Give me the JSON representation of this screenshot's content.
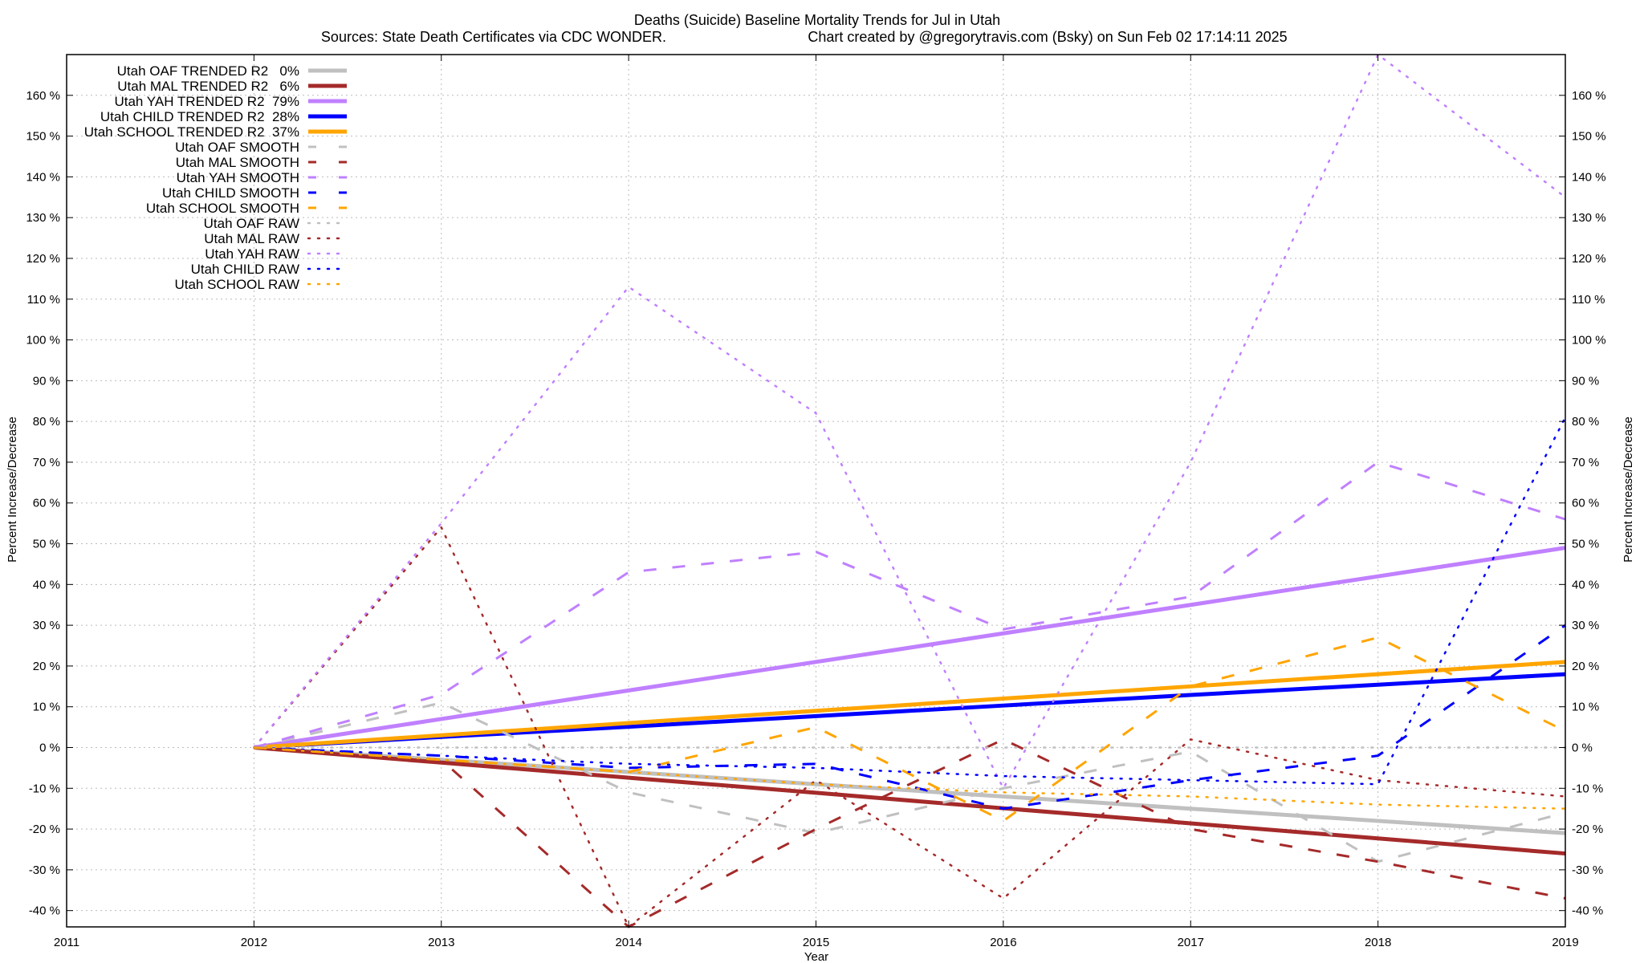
{
  "chart_data": {
    "type": "line",
    "title": "Deaths (Suicide)  Baseline Mortality Trends for Jul in Utah",
    "subtitle_left": "Sources: State Death Certificates via CDC WONDER.",
    "subtitle_right": "Chart created by @gregorytravis.com (Bsky) on Sun Feb 02 17:14:11 2025",
    "xlabel": "Year",
    "ylabel": "Percent Increase/Decrease",
    "y2label": "Percent Increase/Decrease",
    "xlim": [
      2011,
      2019
    ],
    "ylim": [
      -44,
      170
    ],
    "x_ticks": [
      "2011",
      "2012",
      "2013",
      "2014",
      "2015",
      "2016",
      "2017",
      "2018",
      "2019"
    ],
    "y_ticks": [
      -40,
      -30,
      -20,
      -10,
      0,
      10,
      20,
      30,
      40,
      50,
      60,
      70,
      80,
      90,
      100,
      110,
      120,
      130,
      140,
      150,
      160
    ],
    "y_tick_suffix": " %",
    "grid": true,
    "legend_position": "top-left",
    "x": [
      2012,
      2013,
      2014,
      2015,
      2016,
      2017,
      2018,
      2019
    ],
    "series": [
      {
        "name": "Utah OAF TRENDED R2   0%",
        "color": "#c0c0c0",
        "style": "solid",
        "values": [
          0,
          -3,
          -6,
          -9,
          -12,
          -15,
          -18,
          -21
        ]
      },
      {
        "name": "Utah MAL TRENDED R2   6%",
        "color": "#a52a2a",
        "style": "solid",
        "values": [
          0,
          -3.7,
          -7.4,
          -11.1,
          -14.9,
          -18.6,
          -22.3,
          -26
        ]
      },
      {
        "name": "Utah YAH TRENDED R2  79%",
        "color": "#c080ff",
        "style": "solid",
        "values": [
          0,
          7,
          14,
          21,
          28,
          35,
          42,
          49
        ]
      },
      {
        "name": "Utah CHILD TRENDED R2  28%",
        "color": "#0000ff",
        "style": "solid",
        "values": [
          0,
          2.6,
          5.1,
          7.7,
          10.3,
          12.9,
          15.4,
          18
        ]
      },
      {
        "name": "Utah SCHOOL TRENDED R2  37%",
        "color": "#ffa500",
        "style": "solid",
        "values": [
          0,
          3,
          6,
          9,
          12,
          15,
          18,
          21
        ]
      },
      {
        "name": "Utah OAF SMOOTH",
        "color": "#c0c0c0",
        "style": "dashed",
        "values": [
          0,
          11,
          -11,
          -21,
          -10,
          -1,
          -28,
          -16
        ]
      },
      {
        "name": "Utah MAL SMOOTH",
        "color": "#a52a2a",
        "style": "dashed",
        "values": [
          0,
          -3,
          -44,
          -20,
          2,
          -20,
          -28,
          -37
        ]
      },
      {
        "name": "Utah YAH SMOOTH",
        "color": "#c080ff",
        "style": "dashed",
        "values": [
          0,
          13,
          43,
          48,
          29,
          37,
          70,
          56
        ]
      },
      {
        "name": "Utah CHILD SMOOTH",
        "color": "#0000ff",
        "style": "dashed",
        "values": [
          0,
          -2,
          -5,
          -4,
          -15,
          -8,
          -2,
          30
        ]
      },
      {
        "name": "Utah SCHOOL SMOOTH",
        "color": "#ffa500",
        "style": "dashed",
        "values": [
          0,
          -3,
          -6,
          5,
          -18,
          15,
          27,
          4
        ]
      },
      {
        "name": "Utah OAF RAW",
        "color": "#c0c0c0",
        "style": "dotted",
        "values": [
          0,
          0,
          0,
          0,
          0,
          0,
          0,
          0
        ]
      },
      {
        "name": "Utah MAL RAW",
        "color": "#a52a2a",
        "style": "dotted",
        "values": [
          0,
          54,
          -44,
          -8,
          -37,
          2,
          -8,
          -12
        ]
      },
      {
        "name": "Utah YAH RAW",
        "color": "#c080ff",
        "style": "dotted",
        "values": [
          0,
          55,
          113,
          82,
          -10,
          70,
          170,
          135
        ]
      },
      {
        "name": "Utah CHILD RAW",
        "color": "#0000ff",
        "style": "dotted",
        "values": [
          0,
          -2,
          -4,
          -5,
          -7,
          -8,
          -9,
          81
        ]
      },
      {
        "name": "Utah SCHOOL RAW",
        "color": "#ffa500",
        "style": "dotted",
        "values": [
          0,
          -3,
          -6,
          -9,
          -11,
          -12,
          -14,
          -15
        ]
      }
    ]
  }
}
